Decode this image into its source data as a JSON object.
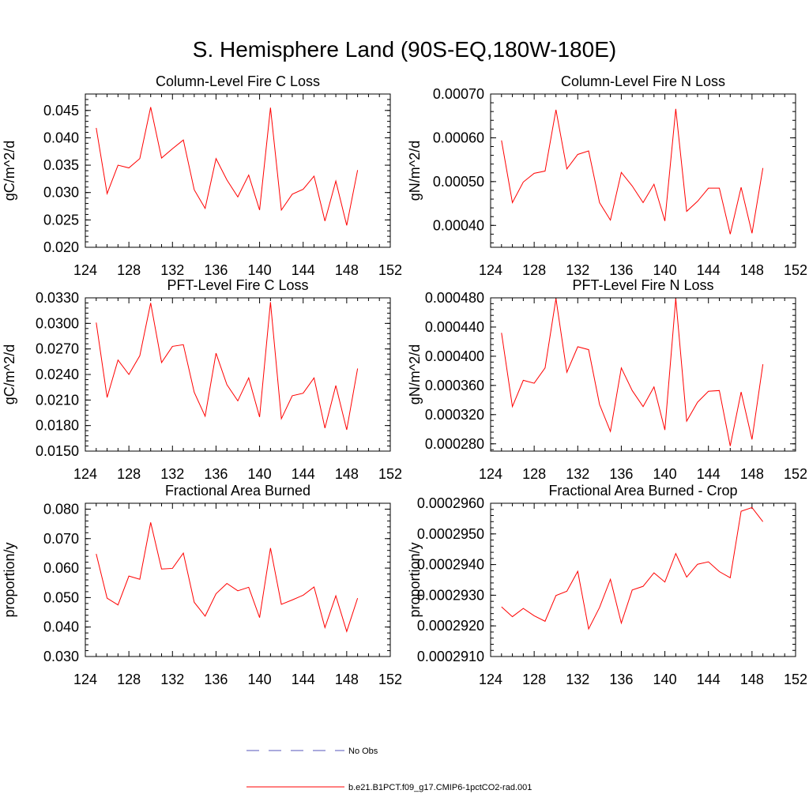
{
  "title": "S. Hemisphere Land (90S-EQ,180W-180E)",
  "colors": {
    "model": "#ff0000",
    "obs": "#5555bb"
  },
  "legend": {
    "obs_label": "No Obs",
    "model_label": "b.e21.B1PCT.f09_g17.CMIP6-1pctCO2-rad.001"
  },
  "chart_data": [
    {
      "type": "line",
      "title": "Column-Level Fire C Loss",
      "ylabel": "gC/m^2/d",
      "xlim": [
        124,
        152
      ],
      "ylim": [
        0.02,
        0.048
      ],
      "xticks": [
        "124",
        "128",
        "132",
        "136",
        "140",
        "144",
        "148",
        "152"
      ],
      "yticks": [
        {
          "v": 0.02,
          "label": "0.020"
        },
        {
          "v": 0.025,
          "label": "0.025"
        },
        {
          "v": 0.03,
          "label": "0.030"
        },
        {
          "v": 0.035,
          "label": "0.035"
        },
        {
          "v": 0.04,
          "label": "0.040"
        },
        {
          "v": 0.045,
          "label": "0.045"
        }
      ],
      "x": [
        125,
        126,
        127,
        128,
        129,
        130,
        131,
        132,
        133,
        134,
        135,
        136,
        137,
        138,
        139,
        140,
        141,
        142,
        143,
        144,
        145,
        146,
        147,
        148,
        149
      ],
      "series": [
        {
          "values": [
            0.0418,
            0.0298,
            0.035,
            0.0345,
            0.0362,
            0.0456,
            0.0363,
            0.038,
            0.0396,
            0.0305,
            0.0271,
            0.0362,
            0.0323,
            0.0292,
            0.0332,
            0.0268,
            0.0455,
            0.0268,
            0.0297,
            0.0306,
            0.033,
            0.0248,
            0.0321,
            0.024,
            0.0341
          ]
        }
      ]
    },
    {
      "type": "line",
      "title": "Column-Level Fire N Loss",
      "ylabel": "gN/m^2/d",
      "xlim": [
        124,
        152
      ],
      "ylim": [
        0.00035,
        0.0007
      ],
      "xticks": [
        "124",
        "128",
        "132",
        "136",
        "140",
        "144",
        "148",
        "152"
      ],
      "yticks": [
        {
          "v": 0.0004,
          "label": "0.00040"
        },
        {
          "v": 0.0005,
          "label": "0.00050"
        },
        {
          "v": 0.0006,
          "label": "0.00060"
        },
        {
          "v": 0.0007,
          "label": "0.00070"
        }
      ],
      "x": [
        125,
        126,
        127,
        128,
        129,
        130,
        131,
        132,
        133,
        134,
        135,
        136,
        137,
        138,
        139,
        140,
        141,
        142,
        143,
        144,
        145,
        146,
        147,
        148,
        149
      ],
      "series": [
        {
          "values": [
            0.000594,
            0.000452,
            0.000499,
            0.000519,
            0.000524,
            0.000664,
            0.000529,
            0.000562,
            0.00057,
            0.000452,
            0.000412,
            0.000521,
            0.00049,
            0.000452,
            0.000494,
            0.00041,
            0.000666,
            0.000432,
            0.000455,
            0.000485,
            0.000485,
            0.00038,
            0.000487,
            0.000382,
            0.000531
          ]
        }
      ]
    },
    {
      "type": "line",
      "title": "PFT-Level Fire C Loss",
      "ylabel": "gC/m^2/d",
      "xlim": [
        124,
        152
      ],
      "ylim": [
        0.015,
        0.033
      ],
      "xticks": [
        "124",
        "128",
        "132",
        "136",
        "140",
        "144",
        "148",
        "152"
      ],
      "yticks": [
        {
          "v": 0.015,
          "label": "0.0150"
        },
        {
          "v": 0.018,
          "label": "0.0180"
        },
        {
          "v": 0.021,
          "label": "0.0210"
        },
        {
          "v": 0.024,
          "label": "0.0240"
        },
        {
          "v": 0.027,
          "label": "0.0270"
        },
        {
          "v": 0.03,
          "label": "0.0300"
        },
        {
          "v": 0.033,
          "label": "0.0330"
        }
      ],
      "x": [
        125,
        126,
        127,
        128,
        129,
        130,
        131,
        132,
        133,
        134,
        135,
        136,
        137,
        138,
        139,
        140,
        141,
        142,
        143,
        144,
        145,
        146,
        147,
        148,
        149
      ],
      "series": [
        {
          "values": [
            0.0301,
            0.0213,
            0.0257,
            0.024,
            0.0262,
            0.0324,
            0.0254,
            0.0273,
            0.0275,
            0.0219,
            0.0191,
            0.0265,
            0.0228,
            0.0209,
            0.0236,
            0.019,
            0.0325,
            0.0188,
            0.0215,
            0.0218,
            0.0236,
            0.0177,
            0.0227,
            0.0175,
            0.0247
          ]
        }
      ]
    },
    {
      "type": "line",
      "title": "PFT-Level Fire N Loss",
      "ylabel": "gN/m^2/d",
      "xlim": [
        124,
        152
      ],
      "ylim": [
        0.00027,
        0.00048
      ],
      "xticks": [
        "124",
        "128",
        "132",
        "136",
        "140",
        "144",
        "148",
        "152"
      ],
      "yticks": [
        {
          "v": 0.00028,
          "label": "0.000280"
        },
        {
          "v": 0.00032,
          "label": "0.000320"
        },
        {
          "v": 0.00036,
          "label": "0.000360"
        },
        {
          "v": 0.0004,
          "label": "0.000400"
        },
        {
          "v": 0.00044,
          "label": "0.000440"
        },
        {
          "v": 0.00048,
          "label": "0.000480"
        }
      ],
      "x": [
        125,
        126,
        127,
        128,
        129,
        130,
        131,
        132,
        133,
        134,
        135,
        136,
        137,
        138,
        139,
        140,
        141,
        142,
        143,
        144,
        145,
        146,
        147,
        148,
        149
      ],
      "series": [
        {
          "values": [
            0.000432,
            0.000331,
            0.000367,
            0.000363,
            0.000384,
            0.000479,
            0.000378,
            0.000413,
            0.000409,
            0.000334,
            0.000297,
            0.000384,
            0.000353,
            0.000331,
            0.000358,
            0.000299,
            0.000479,
            0.000311,
            0.000337,
            0.000352,
            0.000353,
            0.000277,
            0.000351,
            0.000286,
            0.000389
          ]
        }
      ]
    },
    {
      "type": "line",
      "title": "Fractional Area Burned",
      "ylabel": "proportion/y",
      "xlim": [
        124,
        152
      ],
      "ylim": [
        0.03,
        0.082
      ],
      "xticks": [
        "124",
        "128",
        "132",
        "136",
        "140",
        "144",
        "148",
        "152"
      ],
      "yticks": [
        {
          "v": 0.03,
          "label": "0.030"
        },
        {
          "v": 0.04,
          "label": "0.040"
        },
        {
          "v": 0.05,
          "label": "0.050"
        },
        {
          "v": 0.06,
          "label": "0.060"
        },
        {
          "v": 0.07,
          "label": "0.070"
        },
        {
          "v": 0.08,
          "label": "0.080"
        }
      ],
      "x": [
        125,
        126,
        127,
        128,
        129,
        130,
        131,
        132,
        133,
        134,
        135,
        136,
        137,
        138,
        139,
        140,
        141,
        142,
        143,
        144,
        145,
        146,
        147,
        148,
        149
      ],
      "series": [
        {
          "values": [
            0.0648,
            0.0498,
            0.0475,
            0.0573,
            0.0562,
            0.0755,
            0.0597,
            0.0599,
            0.0651,
            0.0484,
            0.0437,
            0.0513,
            0.0548,
            0.0523,
            0.0535,
            0.0432,
            0.0668,
            0.0477,
            0.0492,
            0.0508,
            0.0536,
            0.0398,
            0.0506,
            0.0385,
            0.0498
          ]
        }
      ]
    },
    {
      "type": "line",
      "title": "Fractional Area Burned - Crop",
      "ylabel": "proportion/y",
      "xlim": [
        124,
        152
      ],
      "ylim": [
        0.000291,
        0.000296
      ],
      "xticks": [
        "124",
        "128",
        "132",
        "136",
        "140",
        "144",
        "148",
        "152"
      ],
      "yticks": [
        {
          "v": 0.000291,
          "label": "0.0002910"
        },
        {
          "v": 0.000292,
          "label": "0.0002920"
        },
        {
          "v": 0.000293,
          "label": "0.0002930"
        },
        {
          "v": 0.000294,
          "label": "0.0002940"
        },
        {
          "v": 0.000295,
          "label": "0.0002950"
        },
        {
          "v": 0.000296,
          "label": "0.0002960"
        }
      ],
      "x": [
        125,
        126,
        127,
        128,
        129,
        130,
        131,
        132,
        133,
        134,
        135,
        136,
        137,
        138,
        139,
        140,
        141,
        142,
        143,
        144,
        145,
        146,
        147,
        148,
        149
      ],
      "series": [
        {
          "values": [
            0.00029262,
            0.0002923,
            0.00029257,
            0.00029233,
            0.00029215,
            0.00029299,
            0.00029313,
            0.00029378,
            0.0002919,
            0.0002926,
            0.00029352,
            0.00029209,
            0.00029317,
            0.00029329,
            0.00029373,
            0.00029343,
            0.00029436,
            0.00029359,
            0.00029401,
            0.00029409,
            0.00029377,
            0.00029357,
            0.00029574,
            0.00029586,
            0.0002954
          ]
        }
      ]
    }
  ]
}
